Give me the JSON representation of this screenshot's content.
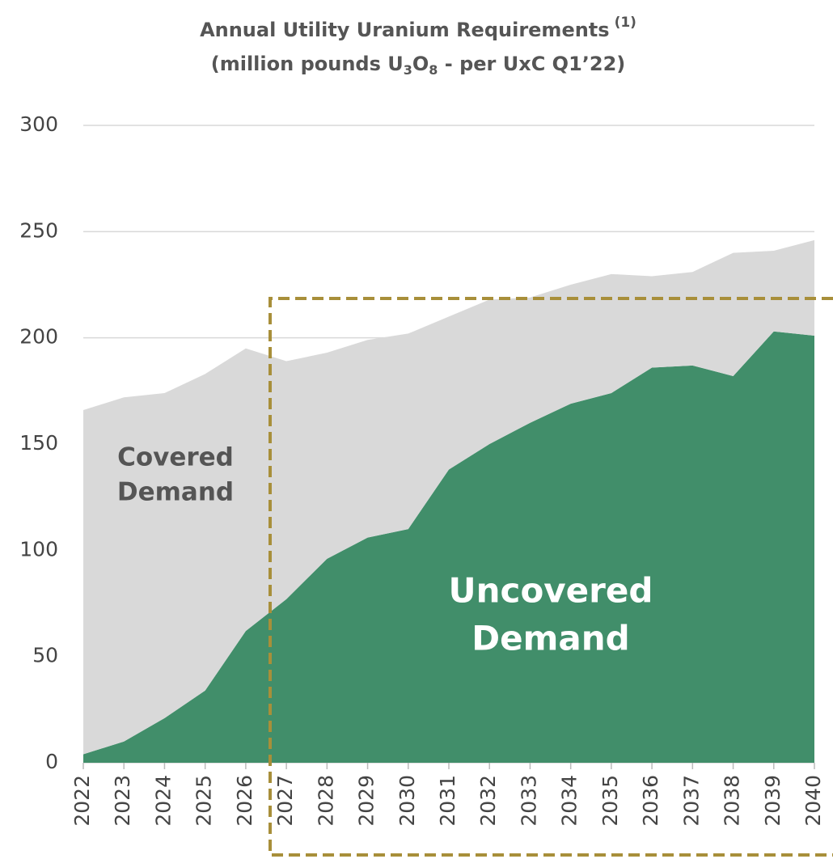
{
  "chart_data": {
    "type": "stacked-area",
    "title": "Annual Utility Uranium Requirements",
    "title_note": "(1)",
    "subtitle_parts": [
      "(million pounds U",
      "3",
      "O",
      "8",
      " - per UxC Q1’22)"
    ],
    "categories": [
      "2022",
      "2023",
      "2024",
      "2025",
      "2026",
      "2027",
      "2028",
      "2029",
      "2030",
      "2031",
      "2032",
      "2033",
      "2034",
      "2035",
      "2036",
      "2037",
      "2038",
      "2039",
      "2040"
    ],
    "series": [
      {
        "name": "Uncovered Demand",
        "color": "#418e6a",
        "values": [
          4,
          10,
          21,
          34,
          62,
          77,
          96,
          106,
          110,
          138,
          150,
          160,
          169,
          174,
          186,
          187,
          182,
          203,
          201
        ]
      },
      {
        "name": "Covered Demand",
        "color": "#d9d9d9",
        "values": [
          162,
          162,
          153,
          149,
          133,
          112,
          97,
          93,
          92,
          72,
          68,
          59,
          56,
          56,
          43,
          44,
          58,
          38,
          45
        ]
      }
    ],
    "annotations": [
      {
        "lines": [
          "Covered",
          "Demand"
        ]
      },
      {
        "lines": [
          "Uncovered",
          "Demand"
        ]
      }
    ],
    "ylim": [
      0,
      300
    ],
    "yticks": [
      0,
      50,
      100,
      150,
      200,
      250,
      300
    ],
    "grid": true
  }
}
